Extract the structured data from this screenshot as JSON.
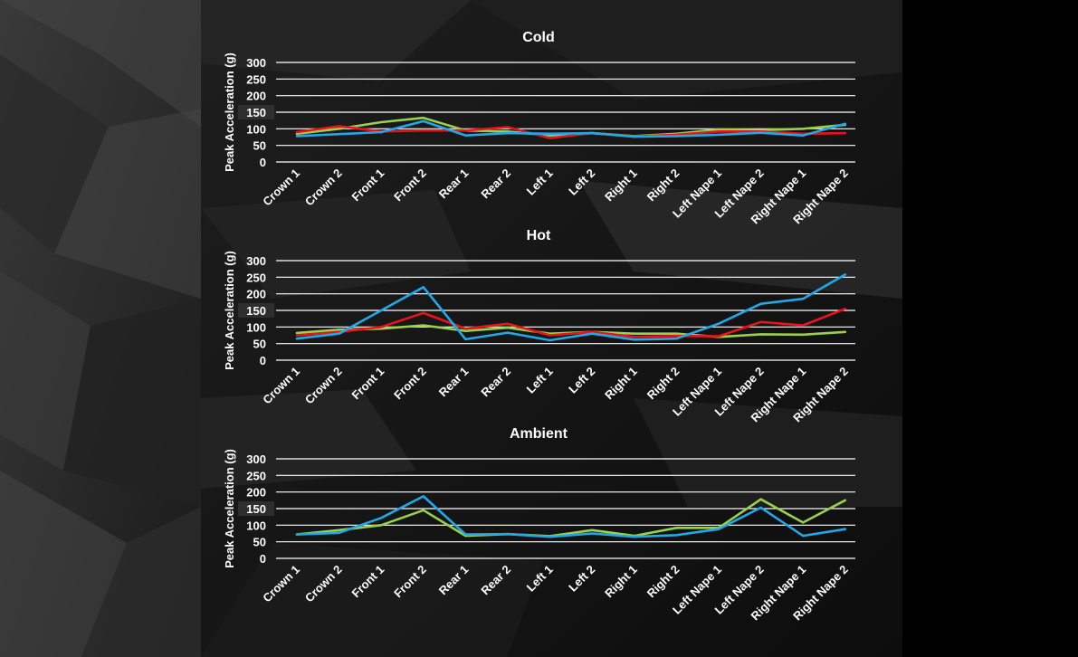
{
  "colors": {
    "grid": "#ffffff",
    "text": "#ffffff",
    "highlight_tick": "#ff1a1a",
    "highlight_band": "#333333",
    "green": "#9ad14b",
    "red": "#e8141a",
    "blue": "#22a8e8"
  },
  "chart_data": [
    {
      "type": "line",
      "title": "Cold",
      "ylabel": "Peak Acceleration (g)",
      "ylim": [
        0,
        300
      ],
      "yticks": [
        0,
        50,
        100,
        150,
        200,
        250,
        300
      ],
      "highlight_tick": 150,
      "categories": [
        "Crown 1",
        "Crown 2",
        "Front 1",
        "Front 2",
        "Rear 1",
        "Rear 2",
        "Left 1",
        "Left 2",
        "Right 1",
        "Right 2",
        "Left Nape 1",
        "Left Nape 2",
        "Right Nape 1",
        "Right Nape 2"
      ],
      "series": [
        {
          "name": "green",
          "color": "green",
          "values": [
            85,
            100,
            120,
            133,
            95,
            92,
            80,
            87,
            78,
            85,
            98,
            96,
            100,
            112
          ]
        },
        {
          "name": "red",
          "color": "red",
          "values": [
            90,
            108,
            92,
            95,
            95,
            105,
            72,
            87,
            77,
            82,
            92,
            92,
            85,
            87
          ]
        },
        {
          "name": "blue",
          "color": "blue",
          "values": [
            78,
            84,
            90,
            123,
            80,
            87,
            85,
            87,
            76,
            78,
            82,
            88,
            80,
            115
          ]
        }
      ]
    },
    {
      "type": "line",
      "title": "Hot",
      "ylabel": "Peak Acceleration (g)",
      "ylim": [
        0,
        300
      ],
      "yticks": [
        0,
        50,
        100,
        150,
        200,
        250,
        300
      ],
      "highlight_tick": 150,
      "categories": [
        "Crown 1",
        "Crown 2",
        "Front 1",
        "Front 2",
        "Rear 1",
        "Rear 2",
        "Left 1",
        "Left 2",
        "Right 1",
        "Right 2",
        "Left Nape 1",
        "Left Nape 2",
        "Right Nape 1",
        "Right Nape 2"
      ],
      "series": [
        {
          "name": "green",
          "color": "green",
          "values": [
            82,
            92,
            95,
            105,
            88,
            98,
            80,
            85,
            80,
            80,
            70,
            78,
            77,
            85
          ]
        },
        {
          "name": "red",
          "color": "red",
          "values": [
            75,
            85,
            100,
            142,
            95,
            110,
            75,
            85,
            70,
            73,
            72,
            115,
            105,
            155
          ]
        },
        {
          "name": "blue",
          "color": "blue",
          "values": [
            65,
            80,
            150,
            220,
            63,
            83,
            60,
            80,
            62,
            65,
            110,
            170,
            185,
            258
          ]
        }
      ]
    },
    {
      "type": "line",
      "title": "Ambient",
      "ylabel": "Peak Acceleration (g)",
      "ylim": [
        0,
        300
      ],
      "yticks": [
        0,
        50,
        100,
        150,
        200,
        250,
        300
      ],
      "highlight_tick": 150,
      "categories": [
        "Crown 1",
        "Crown 2",
        "Front 1",
        "Front 2",
        "Rear 1",
        "Rear 2",
        "Left 1",
        "Left 2",
        "Right 1",
        "Right 2",
        "Left Nape 1",
        "Left Nape 2",
        "Right Nape 1",
        "Right Nape 2"
      ],
      "series": [
        {
          "name": "green",
          "color": "green",
          "values": [
            72,
            85,
            100,
            145,
            68,
            73,
            67,
            85,
            68,
            92,
            92,
            178,
            108,
            175
          ]
        },
        {
          "name": "blue",
          "color": "blue",
          "values": [
            72,
            77,
            122,
            187,
            72,
            73,
            65,
            75,
            65,
            70,
            88,
            153,
            68,
            88
          ]
        }
      ]
    }
  ]
}
